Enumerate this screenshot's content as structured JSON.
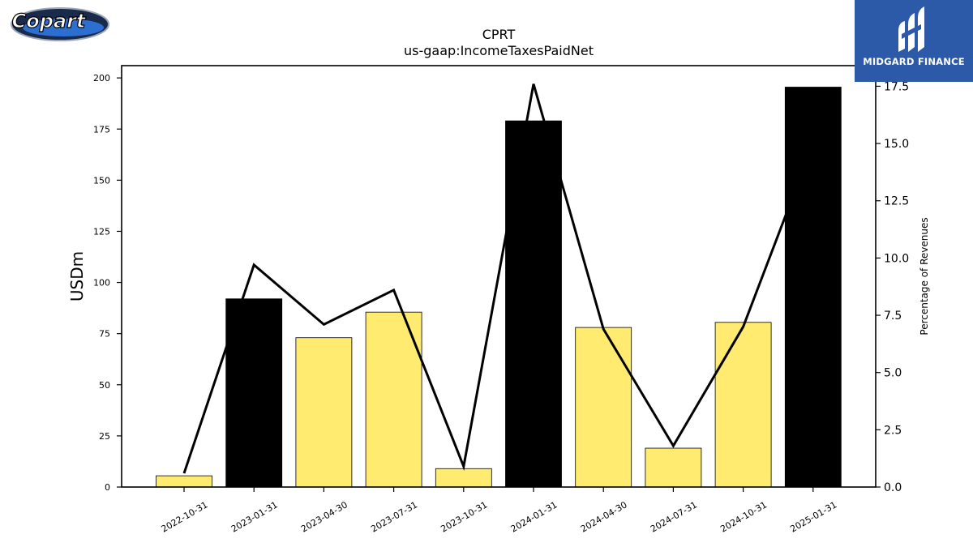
{
  "logos": {
    "left_text": "Copart",
    "right_text": "MIDGARD FINANCE"
  },
  "colors": {
    "bar_highlight": "#000000",
    "bar_normal": "#ffeb70",
    "line": "#000000",
    "brand_blue": "#2c5aa8"
  },
  "chart_data": {
    "type": "bar",
    "title": "CPRT",
    "subtitle": "us-gaap:IncomeTaxesPaidNet",
    "ylabel": "USDm",
    "y2label": "Percentage of Revenues",
    "categories": [
      "2022-10-31",
      "2023-01-31",
      "2023-04-30",
      "2023-07-31",
      "2023-10-31",
      "2024-01-31",
      "2024-04-30",
      "2024-07-31",
      "2024-10-31",
      "2025-01-31"
    ],
    "values": [
      5.5,
      92,
      73,
      85.5,
      9,
      179,
      78,
      19,
      80.5,
      195.5
    ],
    "highlight": [
      false,
      true,
      false,
      false,
      false,
      true,
      false,
      false,
      false,
      true
    ],
    "line_series": {
      "name": "",
      "values": [
        0.6,
        9.7,
        7.1,
        8.6,
        0.9,
        17.6,
        6.9,
        1.8,
        7.0,
        15.0
      ]
    },
    "ylim": [
      0,
      206
    ],
    "y2lim": [
      0,
      18.4
    ],
    "yticks": [
      0,
      25,
      50,
      75,
      100,
      125,
      150,
      175,
      200
    ],
    "y2ticks": [
      "0.0",
      "2.5",
      "5.0",
      "7.5",
      "10.0",
      "12.5",
      "15.0",
      "17.5"
    ],
    "grid": false,
    "legend": "none"
  }
}
